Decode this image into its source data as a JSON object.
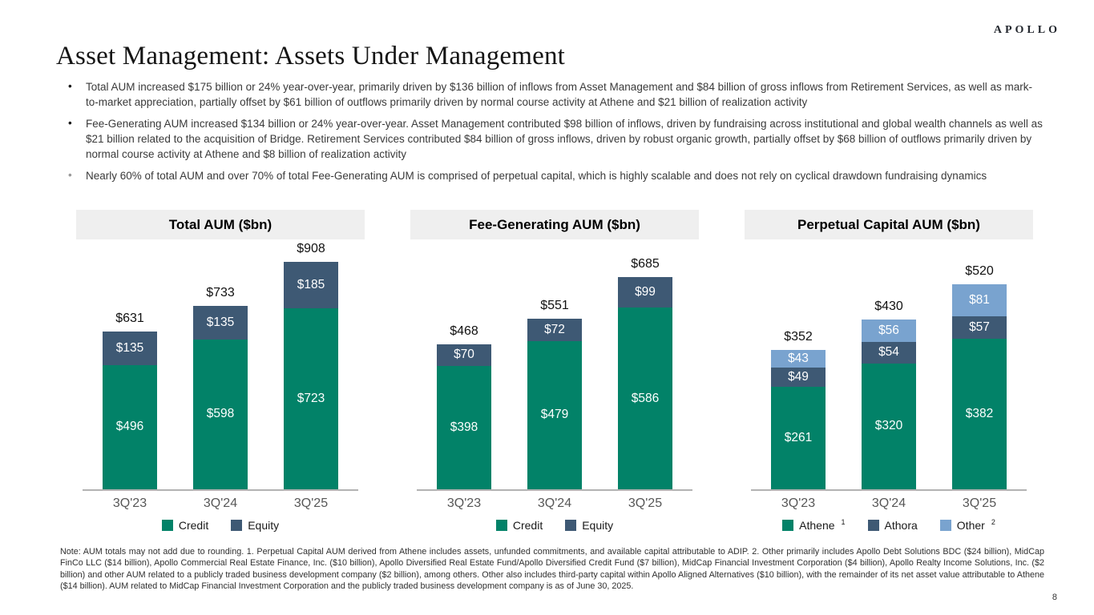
{
  "logo": "APOLLO",
  "page_title": "Asset Management: Assets Under Management",
  "bullets": [
    {
      "text": "Total AUM increased $175 billion or 24% year-over-year, primarily driven by $136 billion of inflows from Asset Management and $84 billion of gross inflows from Retirement Services, as well as mark-to-market appreciation, partially offset by $61 billion of outflows primarily driven by normal course activity at Athene and $21 billion of realization activity"
    },
    {
      "text": "Fee-Generating AUM increased $134 billion or 24% year-over-year. Asset Management contributed $98 billion of inflows, driven by fundraising across institutional and global wealth channels as well as $21 billion related to the acquisition of Bridge. Retirement Services contributed $84 billion of gross inflows, driven by robust organic growth, partially offset by $68 billion of outflows primarily driven by normal course activity at Athene and $8 billion of realization activity"
    },
    {
      "text": "Nearly 60% of total AUM and over 70% of total Fee-Generating AUM is comprised of perpetual capital, which is highly scalable and does not rely on cyclical drawdown fundraising dynamics"
    }
  ],
  "chart_data": [
    {
      "type": "bar",
      "stacked": true,
      "title": "Total AUM ($bn)",
      "unit_prefix": "$",
      "categories": [
        "3Q'23",
        "3Q'24",
        "3Q'25"
      ],
      "series": [
        {
          "name": "Credit",
          "sup": "",
          "color": "#028268",
          "values": [
            496,
            598,
            723
          ]
        },
        {
          "name": "Equity",
          "sup": "",
          "color": "#3E5974",
          "values": [
            135,
            135,
            185
          ]
        }
      ],
      "totals": [
        631,
        733,
        908
      ],
      "legend_position": "bottom",
      "grid": false
    },
    {
      "type": "bar",
      "stacked": true,
      "title": "Fee-Generating AUM ($bn)",
      "unit_prefix": "$",
      "categories": [
        "3Q'23",
        "3Q'24",
        "3Q'25"
      ],
      "series": [
        {
          "name": "Credit",
          "sup": "",
          "color": "#028268",
          "values": [
            398,
            479,
            586
          ]
        },
        {
          "name": "Equity",
          "sup": "",
          "color": "#3E5974",
          "values": [
            70,
            72,
            99
          ]
        }
      ],
      "totals": [
        468,
        551,
        685
      ],
      "legend_position": "bottom",
      "grid": false
    },
    {
      "type": "bar",
      "stacked": true,
      "title": "Perpetual Capital AUM ($bn)",
      "unit_prefix": "$",
      "categories": [
        "3Q'23",
        "3Q'24",
        "3Q'25"
      ],
      "series": [
        {
          "name": "Athene",
          "sup": "1",
          "color": "#028268",
          "values": [
            261,
            320,
            382
          ]
        },
        {
          "name": "Athora",
          "sup": "",
          "color": "#3E5974",
          "values": [
            49,
            54,
            57
          ]
        },
        {
          "name": "Other",
          "sup": "2",
          "color": "#79A3CF",
          "values": [
            43,
            56,
            81
          ]
        }
      ],
      "totals": [
        352,
        430,
        520
      ],
      "legend_position": "bottom",
      "grid": false
    }
  ],
  "footnote": "Note: AUM totals may not add due to rounding. 1. Perpetual Capital AUM derived from Athene includes assets, unfunded commitments, and available capital attributable to ADIP. 2. Other primarily includes Apollo Debt Solutions BDC ($24 billion), MidCap FinCo LLC ($14 billion), Apollo Commercial Real Estate Finance, Inc. ($10 billion), Apollo Diversified Real Estate Fund/Apollo Diversified Credit Fund ($7 billion), MidCap Financial Investment Corporation ($4 billion), Apollo Realty Income Solutions, Inc. ($2 billion) and other AUM related to a publicly traded business development company ($2 billion), among others. Other also includes third-party capital within Apollo Aligned Alternatives ($10 billion), with the remainder of its net asset value attributable to Athene ($14 billion). AUM related to MidCap Financial Investment Corporation and the publicly traded business development company is as of June 30, 2025.",
  "page_number": "8"
}
